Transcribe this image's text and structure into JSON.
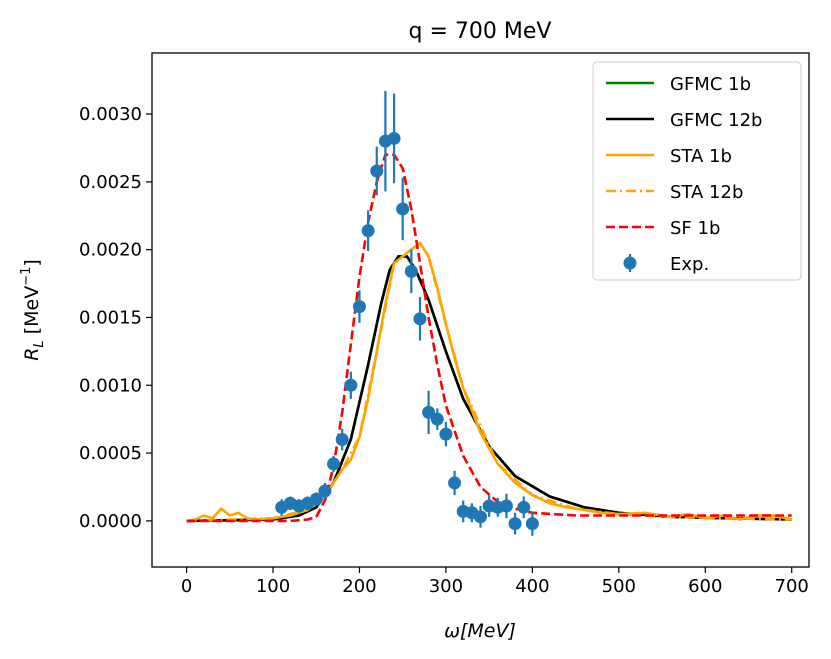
{
  "chart_data": {
    "type": "line",
    "title": "q = 700 MeV",
    "xlabel": "ω[MeV]",
    "ylabel_main": "R",
    "ylabel_sub": "L",
    "ylabel_unit_open": " [MeV",
    "ylabel_unit_sup": "−1",
    "ylabel_unit_close": "]",
    "xlim": [
      -40,
      720
    ],
    "ylim": [
      -0.00034,
      0.00345
    ],
    "xticks": [
      0,
      100,
      200,
      300,
      400,
      500,
      600,
      700
    ],
    "xtick_labels": [
      "0",
      "100",
      "200",
      "300",
      "400",
      "500",
      "600",
      "700"
    ],
    "yticks": [
      0.0,
      0.0005,
      0.001,
      0.0015,
      0.002,
      0.0025,
      0.003
    ],
    "ytick_labels": [
      "0.0000",
      "0.0005",
      "0.0010",
      "0.0015",
      "0.0020",
      "0.0025",
      "0.0030"
    ],
    "legend_position": "upper-right",
    "series": [
      {
        "name": "GFMC 1b",
        "color": "#008000",
        "dash": "solid",
        "x": [
          0,
          100,
          130,
          150,
          170,
          190,
          210,
          225,
          235,
          245,
          255,
          265,
          280,
          300,
          320,
          350,
          380,
          420,
          460,
          500,
          560,
          620,
          700
        ],
        "y": [
          0,
          1e-05,
          4e-05,
          0.0001,
          0.00028,
          0.0006,
          0.00115,
          0.0016,
          0.00185,
          0.00195,
          0.00195,
          0.00185,
          0.00163,
          0.00125,
          0.0009,
          0.00055,
          0.00033,
          0.00018,
          0.0001,
          6e-05,
          3e-05,
          2e-05,
          1e-05
        ]
      },
      {
        "name": "GFMC 12b",
        "color": "#000000",
        "dash": "solid",
        "x": [
          0,
          100,
          130,
          150,
          170,
          190,
          210,
          225,
          235,
          245,
          255,
          265,
          280,
          300,
          320,
          350,
          380,
          420,
          460,
          500,
          560,
          620,
          700
        ],
        "y": [
          0,
          1e-05,
          4e-05,
          0.0001,
          0.00028,
          0.0006,
          0.00115,
          0.0016,
          0.00185,
          0.00195,
          0.00195,
          0.00185,
          0.00163,
          0.00125,
          0.0009,
          0.00055,
          0.00033,
          0.00018,
          0.0001,
          6e-05,
          3e-05,
          2e-05,
          1e-05
        ]
      },
      {
        "name": "STA 1b",
        "color": "#FFA500",
        "dash": "solid",
        "x": [
          0,
          10,
          20,
          30,
          40,
          50,
          60,
          70,
          80,
          100,
          120,
          140,
          160,
          170,
          180,
          190,
          200,
          210,
          220,
          230,
          240,
          250,
          260,
          270,
          280,
          290,
          300,
          310,
          320,
          340,
          360,
          380,
          400,
          420,
          440,
          460,
          480,
          500,
          530,
          560,
          580,
          600,
          620,
          640,
          660,
          680,
          700
        ],
        "y": [
          0,
          1e-05,
          4e-05,
          2e-05,
          9e-05,
          4e-05,
          6e-05,
          2e-05,
          1e-05,
          2e-05,
          4e-05,
          8e-05,
          0.00018,
          0.00028,
          0.00038,
          0.00045,
          0.00062,
          0.0009,
          0.00125,
          0.0016,
          0.0019,
          0.00195,
          0.002,
          0.00205,
          0.00195,
          0.00172,
          0.00145,
          0.0012,
          0.00098,
          0.00065,
          0.00042,
          0.00028,
          0.00019,
          0.00013,
          0.0001,
          8e-05,
          6e-05,
          5e-05,
          6e-05,
          3e-05,
          5e-05,
          2e-05,
          4e-05,
          1e-05,
          4e-05,
          4e-05,
          1e-05
        ]
      },
      {
        "name": "STA 12b",
        "color": "#FFA500",
        "dash": "dashdot",
        "x": [
          0,
          100,
          140,
          160,
          180,
          200,
          220,
          240,
          260,
          270,
          280,
          300,
          320,
          360,
          400,
          450,
          500,
          560,
          620,
          700
        ],
        "y": [
          0,
          2e-05,
          8e-05,
          0.00018,
          0.00038,
          0.00062,
          0.00125,
          0.0019,
          0.002,
          0.00205,
          0.00195,
          0.00145,
          0.00098,
          0.00042,
          0.00019,
          9e-05,
          5e-05,
          3e-05,
          2e-05,
          1e-05
        ]
      },
      {
        "name": "SF 1b",
        "color": "#FF0000",
        "dash": "dashed",
        "x": [
          0,
          120,
          140,
          150,
          160,
          170,
          180,
          190,
          200,
          210,
          220,
          230,
          240,
          250,
          260,
          270,
          280,
          290,
          300,
          320,
          340,
          360,
          380,
          400,
          450,
          500,
          600,
          700
        ],
        "y": [
          0,
          0,
          1e-05,
          3e-05,
          0.00015,
          0.0004,
          0.0008,
          0.0013,
          0.0018,
          0.0022,
          0.0025,
          0.0027,
          0.0027,
          0.0026,
          0.0023,
          0.0019,
          0.0015,
          0.00115,
          0.00085,
          0.00048,
          0.00025,
          0.00014,
          9e-05,
          6e-05,
          4e-05,
          4e-05,
          4e-05,
          4e-05
        ]
      }
    ],
    "experiment": {
      "name": "Exp.",
      "color": "#1f77b4",
      "points": [
        {
          "x": 110,
          "y": 0.0001,
          "err": 6e-05
        },
        {
          "x": 120,
          "y": 0.00013,
          "err": 5e-05
        },
        {
          "x": 130,
          "y": 0.00011,
          "err": 5e-05
        },
        {
          "x": 140,
          "y": 0.00013,
          "err": 5e-05
        },
        {
          "x": 150,
          "y": 0.00016,
          "err": 5e-05
        },
        {
          "x": 160,
          "y": 0.00022,
          "err": 6e-05
        },
        {
          "x": 170,
          "y": 0.00042,
          "err": 6e-05
        },
        {
          "x": 180,
          "y": 0.0006,
          "err": 8e-05
        },
        {
          "x": 190,
          "y": 0.001,
          "err": 0.0001
        },
        {
          "x": 200,
          "y": 0.00158,
          "err": 0.00012
        },
        {
          "x": 210,
          "y": 0.00214,
          "err": 0.00015
        },
        {
          "x": 220,
          "y": 0.00258,
          "err": 0.00018
        },
        {
          "x": 230,
          "y": 0.0028,
          "err": 0.00037
        },
        {
          "x": 240,
          "y": 0.00282,
          "err": 0.00033
        },
        {
          "x": 250,
          "y": 0.0023,
          "err": 0.00023
        },
        {
          "x": 260,
          "y": 0.00184,
          "err": 0.00016
        },
        {
          "x": 270,
          "y": 0.00149,
          "err": 0.00016
        },
        {
          "x": 280,
          "y": 0.0008,
          "err": 0.00016
        },
        {
          "x": 290,
          "y": 0.00075,
          "err": 8e-05
        },
        {
          "x": 300,
          "y": 0.00064,
          "err": 9e-05
        },
        {
          "x": 310,
          "y": 0.00028,
          "err": 9e-05
        },
        {
          "x": 320,
          "y": 7e-05,
          "err": 8e-05
        },
        {
          "x": 330,
          "y": 6e-05,
          "err": 7e-05
        },
        {
          "x": 340,
          "y": 3e-05,
          "err": 8e-05
        },
        {
          "x": 350,
          "y": 0.00011,
          "err": 8e-05
        },
        {
          "x": 360,
          "y": 0.0001,
          "err": 7e-05
        },
        {
          "x": 370,
          "y": 0.00011,
          "err": 9e-05
        },
        {
          "x": 380,
          "y": -2e-05,
          "err": 8e-05
        },
        {
          "x": 390,
          "y": 0.0001,
          "err": 8e-05
        },
        {
          "x": 400,
          "y": -2e-05,
          "err": 9e-05
        }
      ]
    }
  }
}
